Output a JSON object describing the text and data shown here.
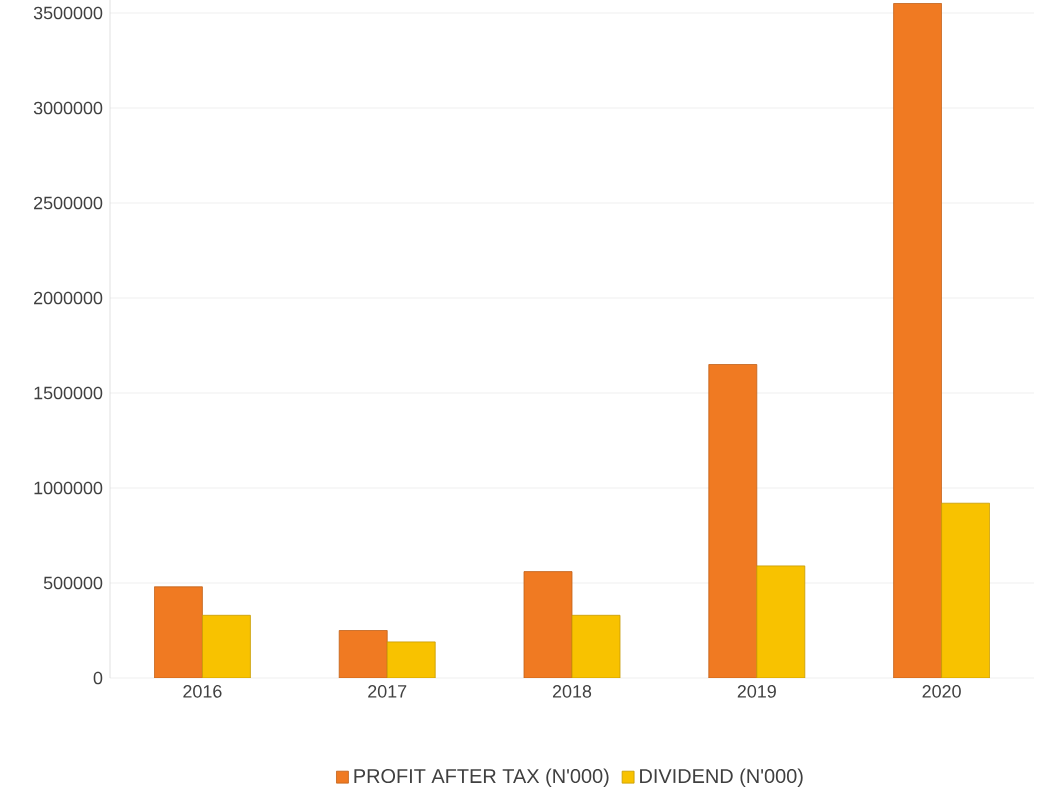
{
  "chart_data": {
    "type": "bar",
    "categories": [
      "2016",
      "2017",
      "2018",
      "2019",
      "2020"
    ],
    "series": [
      {
        "name": "PROFIT AFTER TAX (N'000)",
        "color": "#f07a22",
        "values": [
          480000,
          250000,
          560000,
          1650000,
          3550000
        ]
      },
      {
        "name": "DIVIDEND (N'000)",
        "color": "#f8c200",
        "values": [
          330000,
          190000,
          330000,
          590000,
          920000
        ]
      }
    ],
    "ylim": [
      0,
      3600000
    ],
    "yticks": [
      0,
      500000,
      1000000,
      1500000,
      2000000,
      2500000,
      3000000,
      3500000
    ],
    "grid": "y",
    "legend": "bottom"
  }
}
